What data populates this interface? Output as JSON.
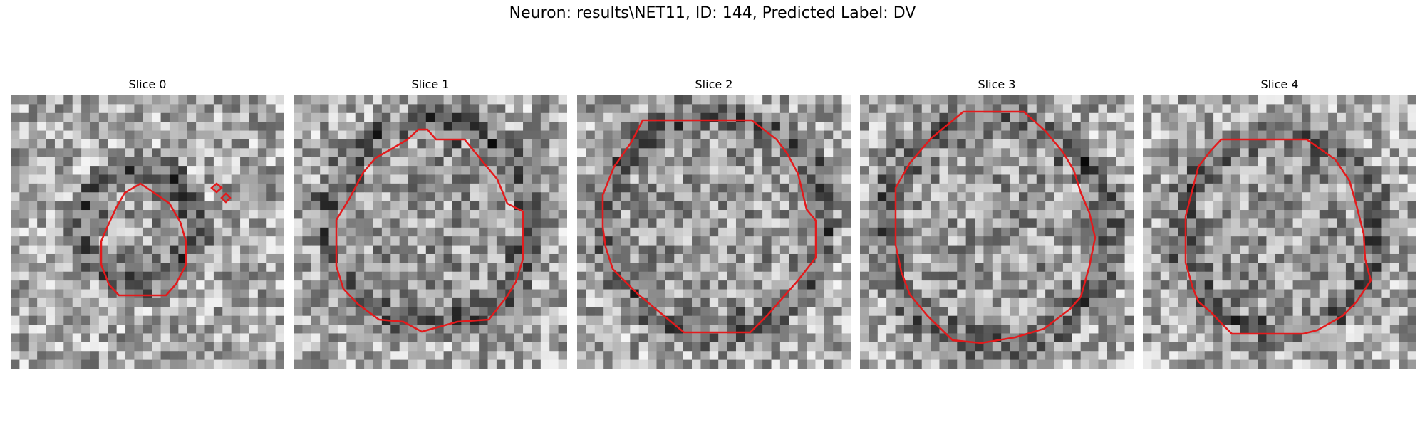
{
  "figure": {
    "title": "Neuron: results\\NET11, ID: 144, Predicted Label: DV"
  },
  "panels": [
    {
      "title": "Slice 0",
      "seed": 11,
      "contour_color": "#e31a1c"
    },
    {
      "title": "Slice 1",
      "seed": 23,
      "contour_color": "#e31a1c"
    },
    {
      "title": "Slice 2",
      "seed": 37,
      "contour_color": "#e31a1c"
    },
    {
      "title": "Slice 3",
      "seed": 49,
      "contour_color": "#e31a1c"
    },
    {
      "title": "Slice 4",
      "seed": 61,
      "contour_color": "#e31a1c"
    }
  ],
  "image": {
    "colormap": "gray",
    "pixel_grid": 31
  }
}
